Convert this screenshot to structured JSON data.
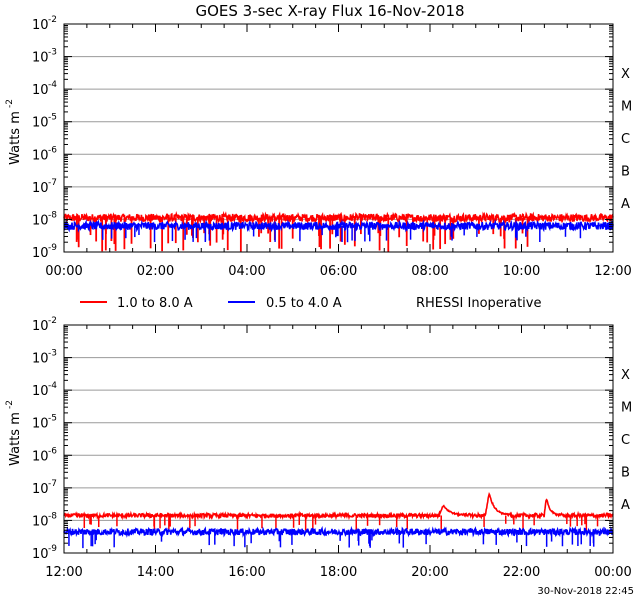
{
  "chart_data": [
    {
      "type": "line",
      "title": "GOES 3-sec X-ray Flux   16-Nov-2018",
      "ylabel": "Watts m",
      "ylabel_exp": "-2",
      "yscale": "log",
      "ylim": [
        1e-09,
        0.01
      ],
      "y_ticks": [
        {
          "base": "10",
          "exp": "-9"
        },
        {
          "base": "10",
          "exp": "-8"
        },
        {
          "base": "10",
          "exp": "-7"
        },
        {
          "base": "10",
          "exp": "-6"
        },
        {
          "base": "10",
          "exp": "-5"
        },
        {
          "base": "10",
          "exp": "-4"
        },
        {
          "base": "10",
          "exp": "-3"
        },
        {
          "base": "10",
          "exp": "-2"
        }
      ],
      "x_ticks": [
        "00:00",
        "02:00",
        "04:00",
        "06:00",
        "08:00",
        "10:00",
        "12:00"
      ],
      "xlim_hours": [
        0,
        12
      ],
      "flare_classes": [
        {
          "label": "A",
          "level": 1e-08
        },
        {
          "label": "B",
          "level": 1e-07
        },
        {
          "label": "C",
          "level": 1e-06
        },
        {
          "label": "M",
          "level": 1e-05
        },
        {
          "label": "X",
          "level": 0.0001
        }
      ],
      "series": [
        {
          "name": "1.0 to 8.0 A",
          "color": "#ff0000",
          "baseline_log": -7.95,
          "noise": 0.12,
          "dropouts": true,
          "events": []
        },
        {
          "name": "0.5 to 4.0 A",
          "color": "#0000ff",
          "baseline_log": -8.2,
          "noise": 0.12,
          "dropouts": false,
          "events": []
        }
      ]
    },
    {
      "type": "line",
      "title": "",
      "ylabel": "Watts m",
      "ylabel_exp": "-2",
      "yscale": "log",
      "ylim": [
        1e-09,
        0.01
      ],
      "y_ticks": [
        {
          "base": "10",
          "exp": "-9"
        },
        {
          "base": "10",
          "exp": "-8"
        },
        {
          "base": "10",
          "exp": "-7"
        },
        {
          "base": "10",
          "exp": "-6"
        },
        {
          "base": "10",
          "exp": "-5"
        },
        {
          "base": "10",
          "exp": "-4"
        },
        {
          "base": "10",
          "exp": "-3"
        },
        {
          "base": "10",
          "exp": "-2"
        }
      ],
      "x_ticks": [
        "12:00",
        "14:00",
        "16:00",
        "18:00",
        "20:00",
        "22:00",
        "00:00"
      ],
      "xlim_hours": [
        12,
        24
      ],
      "flare_classes": [
        {
          "label": "A",
          "level": 1e-08
        },
        {
          "label": "B",
          "level": 1e-07
        },
        {
          "label": "C",
          "level": 1e-06
        },
        {
          "label": "M",
          "level": 1e-05
        },
        {
          "label": "X",
          "level": 0.0001
        }
      ],
      "series": [
        {
          "name": "1.0 to 8.0 A",
          "color": "#ff0000",
          "baseline_log": -7.85,
          "noise": 0.06,
          "dropouts": false,
          "events": [
            {
              "hour": 20.3,
              "peak_log": -7.55,
              "width": 0.15
            },
            {
              "hour": 21.3,
              "peak_log": -7.2,
              "width": 0.12
            },
            {
              "hour": 22.55,
              "peak_log": -7.35,
              "width": 0.08
            }
          ]
        },
        {
          "name": "0.5 to 4.0 A",
          "color": "#0000ff",
          "baseline_log": -8.35,
          "noise": 0.1,
          "dropouts": false,
          "events": []
        }
      ]
    }
  ],
  "legend": [
    {
      "label": "1.0 to 8.0 A",
      "color": "#ff0000"
    },
    {
      "label": "0.5 to 4.0 A",
      "color": "#0000ff"
    }
  ],
  "status": "RHESSI Inoperative",
  "footer": "30-Nov-2018 22:45"
}
